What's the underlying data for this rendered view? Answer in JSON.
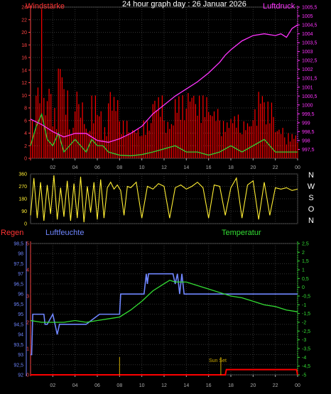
{
  "chart_data": [
    {
      "type": "line",
      "panel": "wind-pressure",
      "title": "24 hour graph day : 26 Januar 2026",
      "left_axis_title": "Windstärke",
      "right_axis_title": "Luftdruck",
      "x_ticks": [
        "02",
        "04",
        "06",
        "08",
        "10",
        "12",
        "14",
        "16",
        "18",
        "20",
        "22",
        "00"
      ],
      "y_left_ticks": [
        "0",
        "2",
        "4",
        "6",
        "8",
        "10",
        "12",
        "14",
        "16",
        "18",
        "20",
        "22",
        "24"
      ],
      "ylim_left": [
        0,
        24
      ],
      "y_right_ticks": [
        "997,5",
        "998",
        "998,5",
        "999",
        "999,5",
        "1000",
        "1000,5",
        "1001",
        "1001,5",
        "1002",
        "1002,5",
        "1003",
        "1003,5",
        "1004",
        "1004,5",
        "1005",
        "1005,5"
      ],
      "ylim_right": [
        997,
        1005.5
      ],
      "series": [
        {
          "role": "gust",
          "color": "#ff0000",
          "x": [
            0,
            0.5,
            1,
            1.2,
            1.5,
            2,
            2.5,
            3,
            3.5,
            4,
            4.5,
            5,
            5.5,
            6,
            6.5,
            7,
            7.5,
            8,
            9,
            10,
            11,
            12,
            13,
            14,
            15,
            16,
            17,
            18,
            19,
            20,
            20.5,
            21,
            22,
            23,
            24
          ],
          "y": [
            6,
            12,
            24,
            10,
            12,
            8,
            16,
            11,
            5,
            11,
            9,
            5,
            10,
            8,
            5,
            11,
            10,
            6,
            5,
            6,
            10,
            6,
            10,
            11,
            10,
            8,
            6,
            7,
            6,
            8,
            11,
            9,
            5,
            4,
            3
          ]
        },
        {
          "role": "mean",
          "color": "#33cc33",
          "x": [
            0,
            0.5,
            1,
            1.5,
            2,
            2.5,
            3,
            3.5,
            4,
            4.5,
            5,
            5.5,
            6,
            6.5,
            7,
            8,
            9,
            10,
            11,
            12,
            13,
            14,
            15,
            16,
            17,
            18,
            19,
            20,
            21,
            22,
            23,
            24
          ],
          "y": [
            2,
            5,
            7,
            3,
            2,
            4,
            1,
            2,
            3,
            2,
            1,
            3,
            2,
            2,
            1,
            0.5,
            0.4,
            0.6,
            1,
            1.5,
            2,
            1,
            1,
            0.5,
            1,
            2,
            1,
            2,
            3,
            1,
            1,
            1
          ]
        },
        {
          "role": "pressure",
          "color": "#ff33ff",
          "x": [
            0,
            1,
            2,
            3,
            4,
            5,
            6,
            7,
            8,
            9,
            10,
            11,
            12,
            13,
            14,
            15,
            16,
            17,
            17.5,
            18,
            19,
            20,
            21,
            22,
            22.5,
            23,
            23.5,
            24
          ],
          "y": [
            999.2,
            998.9,
            998.5,
            998.2,
            998.4,
            998.4,
            998.0,
            997.9,
            998.1,
            998.4,
            998.8,
            999.5,
            1000.0,
            1000.5,
            1000.9,
            1001.3,
            1001.8,
            1002.4,
            1002.8,
            1003.1,
            1003.6,
            1003.9,
            1004.0,
            1003.9,
            1004.0,
            1003.8,
            1004.3,
            1004.5
          ]
        }
      ]
    },
    {
      "type": "line",
      "panel": "wind-direction",
      "y_ticks": [
        "0",
        "90",
        "180",
        "270",
        "360"
      ],
      "ylim": [
        0,
        360
      ],
      "direction_labels": [
        "N",
        "W",
        "S",
        "O",
        "N"
      ],
      "series": [
        {
          "role": "direction",
          "color": "#ffee33",
          "x": [
            0,
            0.3,
            0.6,
            0.9,
            1.2,
            1.5,
            1.8,
            2.1,
            2.4,
            2.7,
            3,
            3.3,
            3.6,
            3.9,
            4.2,
            4.5,
            4.8,
            5.1,
            5.4,
            5.7,
            6,
            6.3,
            6.6,
            6.9,
            7.2,
            7.5,
            7.8,
            8.1,
            8.4,
            8.7,
            9,
            9.5,
            10,
            10.5,
            11,
            11.5,
            12,
            12.5,
            13,
            13.5,
            14,
            14.5,
            15,
            15.5,
            16,
            16.5,
            17,
            17.5,
            18,
            18.5,
            19,
            19.5,
            20,
            20.5,
            21,
            21.5,
            22,
            22.5,
            23,
            23.5,
            24
          ],
          "y": [
            60,
            330,
            40,
            300,
            20,
            280,
            70,
            350,
            30,
            260,
            50,
            310,
            20,
            290,
            40,
            340,
            10,
            270,
            80,
            300,
            30,
            320,
            40,
            260,
            300,
            250,
            280,
            240,
            60,
            270,
            260,
            300,
            40,
            270,
            250,
            290,
            270,
            40,
            260,
            280,
            250,
            270,
            300,
            260,
            40,
            280,
            270,
            60,
            260,
            330,
            40,
            280,
            310,
            30,
            300,
            60,
            260,
            250,
            260,
            240,
            250
          ]
        }
      ]
    },
    {
      "type": "line",
      "panel": "rain-humidity-temperature",
      "left_axis_title": "Regen",
      "humidity_axis_title": "Luftfeuchte",
      "right_axis_title": "Temperatur",
      "sunset_label": "Sun Set",
      "x_ticks": [
        "02",
        "04",
        "06",
        "08",
        "10",
        "12",
        "14",
        "16",
        "18",
        "20",
        "22",
        "00"
      ],
      "y_rain_ticks": [
        "0",
        "1",
        "2",
        "3",
        "4",
        "5"
      ],
      "y_humidity_ticks": [
        "92",
        "92,5",
        "93",
        "93,5",
        "94",
        "94,5",
        "95",
        "95,5",
        "96",
        "96,5",
        "97",
        "97,5",
        "98",
        "98,5"
      ],
      "ylim_humidity": [
        92,
        98.5
      ],
      "y_temp_ticks": [
        "-5",
        "-4,5",
        "-4",
        "-3,5",
        "-3",
        "-2,5",
        "-2",
        "-1,5",
        "-1",
        "-0,5",
        "0",
        "0,5",
        "1",
        "1,5",
        "2",
        "2,5"
      ],
      "ylim_temp": [
        -5,
        2.5
      ],
      "series": [
        {
          "role": "humidity",
          "color": "#6f86ff",
          "x": [
            0,
            0.1,
            0.2,
            1.2,
            1.3,
            1.5,
            2.0,
            2.2,
            2.4,
            2.6,
            4.5,
            5.0,
            6.2,
            6.5,
            8.0,
            8.1,
            10.1,
            10.2,
            10.4,
            10.5,
            10.6,
            12.8,
            13.0,
            13.2,
            13.4,
            13.6,
            13.8,
            14.0,
            24
          ],
          "y": [
            93,
            93,
            95,
            95,
            94.5,
            94.5,
            95,
            94.5,
            94,
            94.5,
            94.5,
            94.5,
            95,
            95,
            95,
            96,
            96,
            96,
            97,
            96.5,
            97,
            97,
            96.5,
            97,
            96,
            97,
            96,
            96,
            96
          ]
        },
        {
          "role": "temperature",
          "color": "#33dd33",
          "x": [
            0,
            1,
            2,
            3,
            4,
            5,
            6,
            7,
            8,
            9,
            10,
            11,
            12,
            12.5,
            13,
            14,
            15,
            16,
            17,
            18,
            19,
            20,
            21,
            22,
            23,
            24
          ],
          "y": [
            -1.9,
            -2.0,
            -2.0,
            -2.0,
            -1.9,
            -2.0,
            -1.9,
            -1.8,
            -1.7,
            -1.3,
            -0.8,
            -0.2,
            0.2,
            0.4,
            0.3,
            0.3,
            0.1,
            -0.1,
            -0.3,
            -0.5,
            -0.6,
            -0.8,
            -1.0,
            -1.1,
            -1.3,
            -1.4
          ]
        },
        {
          "role": "rain",
          "color": "#ff0000",
          "x": [
            0,
            17.5,
            17.6,
            23.9,
            24
          ],
          "y": [
            0,
            0,
            0.2,
            0.2,
            0
          ]
        },
        {
          "role": "sun",
          "color": "#ccaa00",
          "x": [
            8,
            17.1
          ],
          "y": [
            1,
            1
          ]
        }
      ]
    }
  ]
}
